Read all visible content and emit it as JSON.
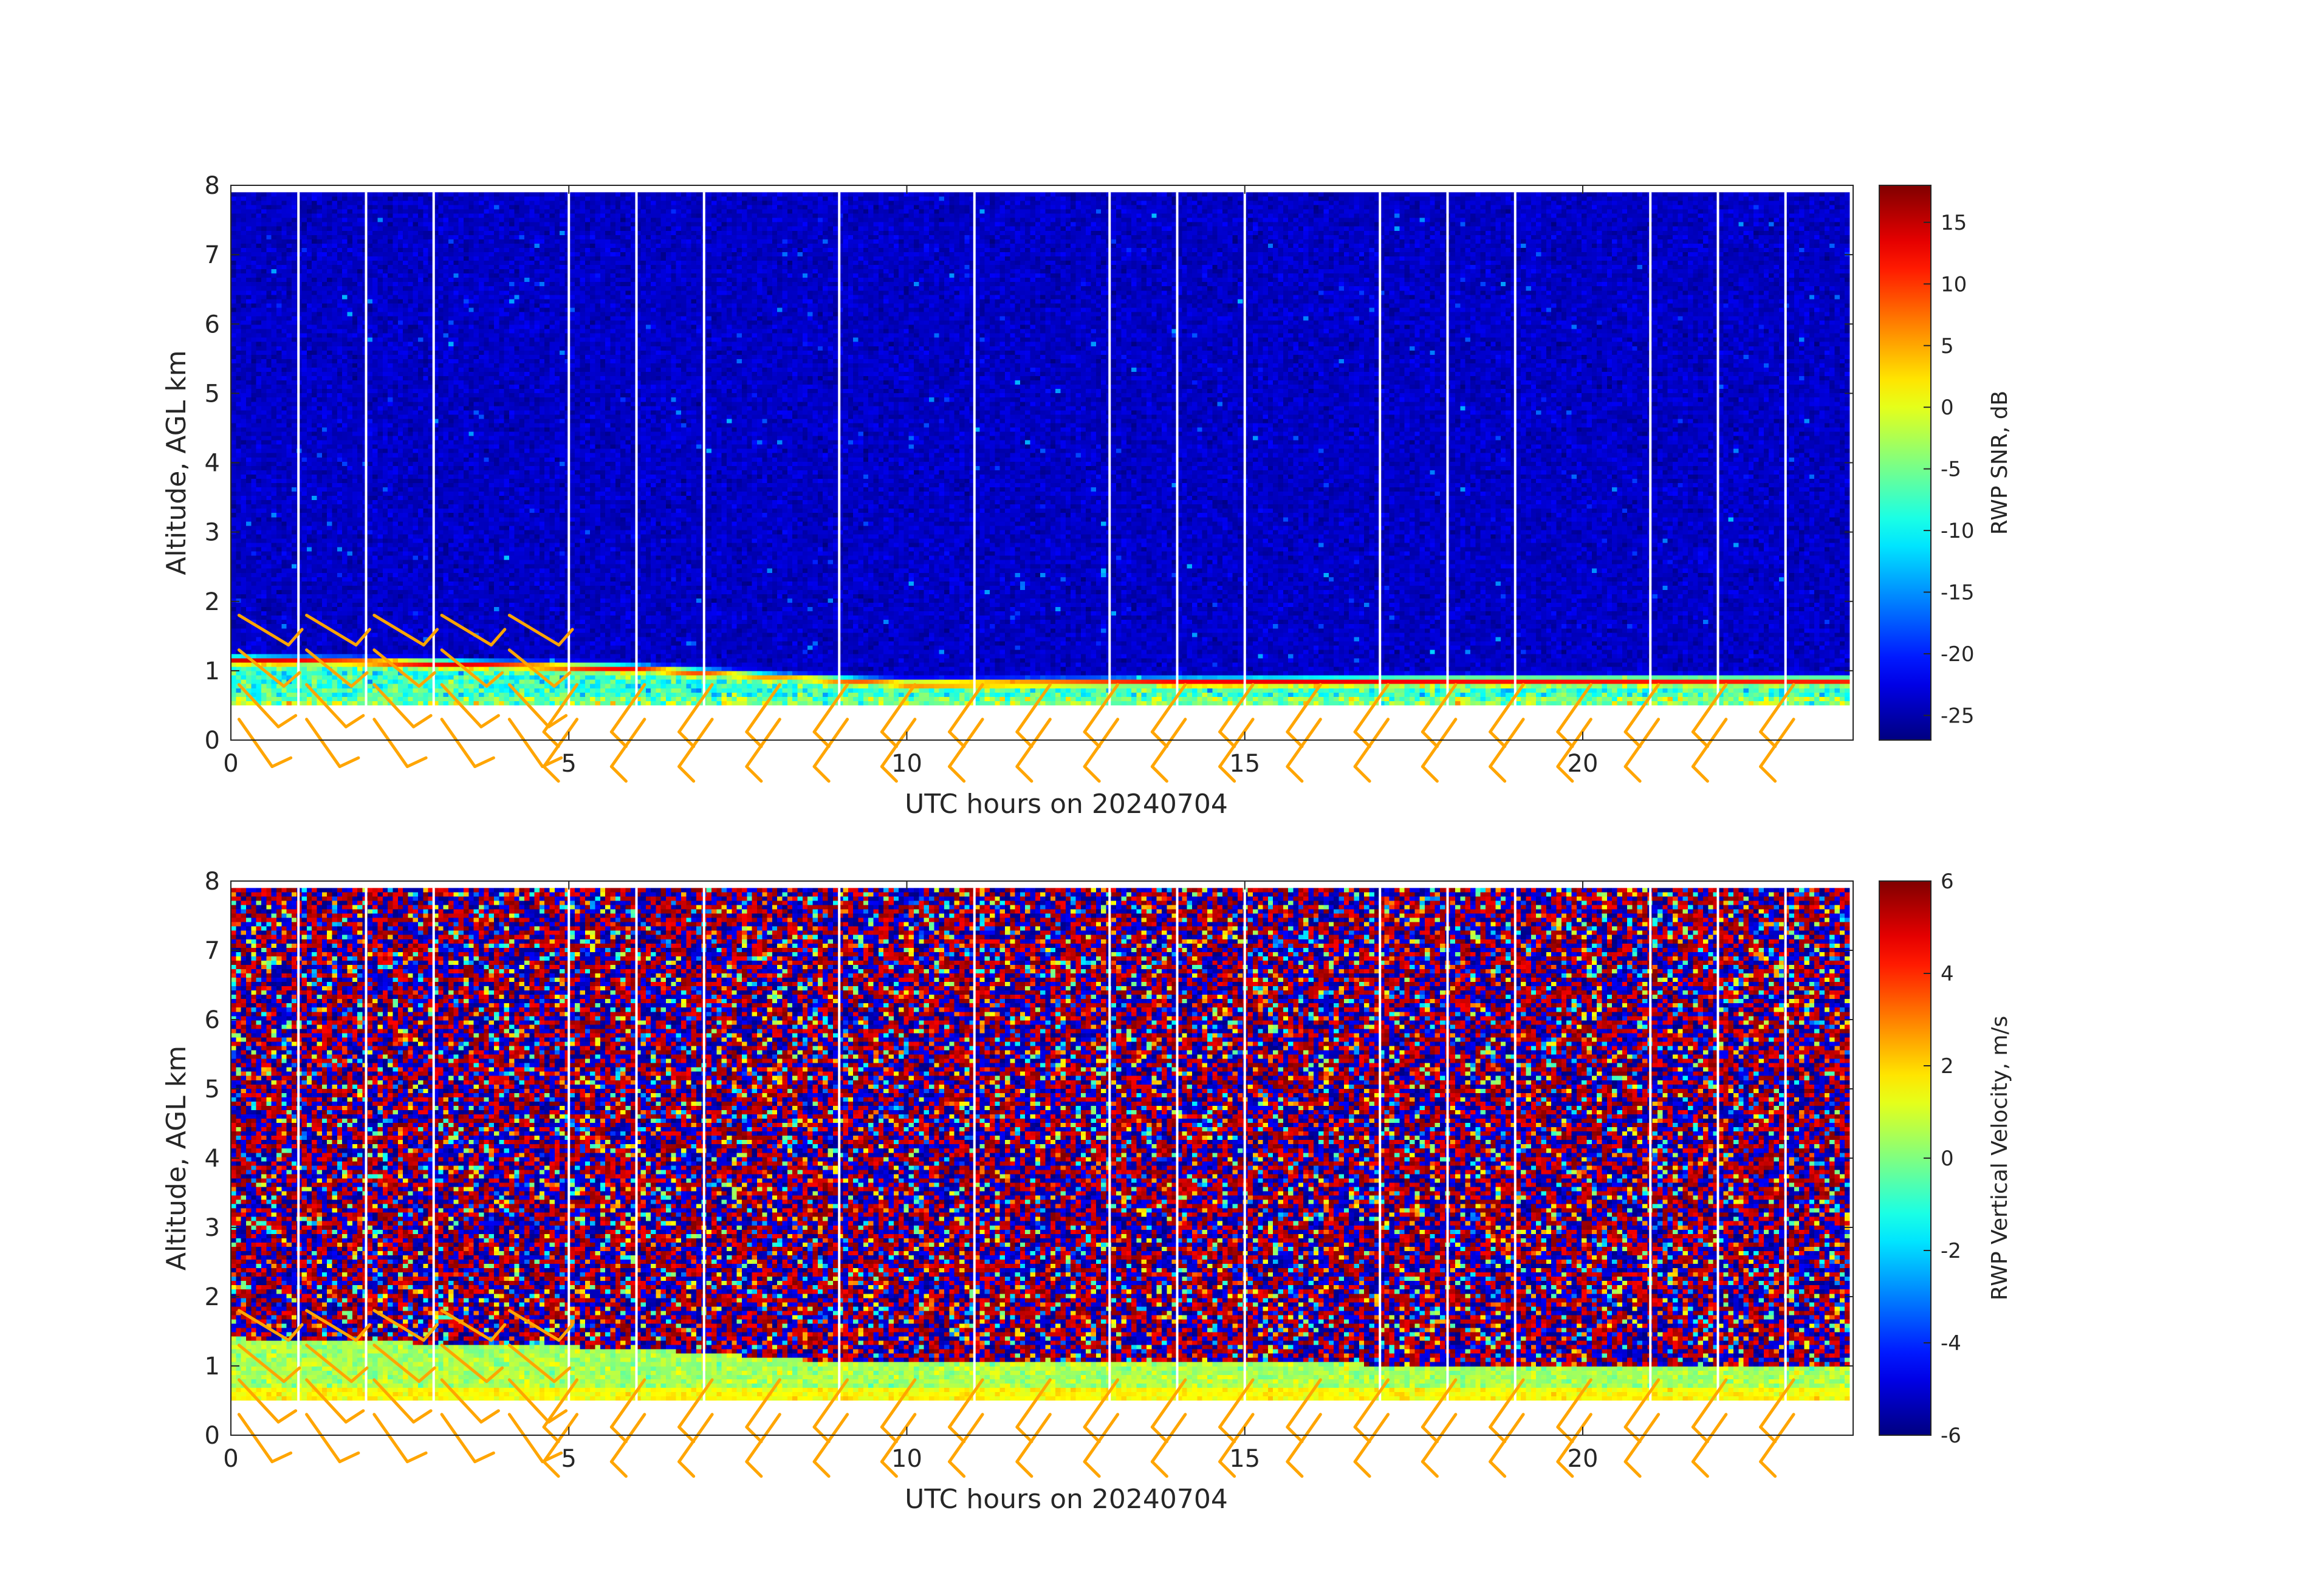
{
  "chart_data": [
    {
      "type": "heatmap",
      "title": "",
      "xlabel": "UTC hours on 20240704",
      "ylabel": "Altitude, AGL km",
      "xlim": [
        0,
        24
      ],
      "ylim": [
        0,
        8
      ],
      "x_ticks": [
        0,
        5,
        10,
        15,
        20
      ],
      "y_ticks": [
        0,
        1,
        2,
        3,
        4,
        5,
        6,
        7,
        8
      ],
      "colormap": "jet",
      "colorbar": {
        "label": "RWP SNR, dB",
        "range": [
          -27,
          18
        ],
        "ticks": [
          15,
          10,
          5,
          0,
          -5,
          -10,
          -15,
          -20,
          -25
        ]
      },
      "data_altitude_range_km": [
        0.5,
        7.9
      ],
      "data_gaps_hours": [
        1,
        2,
        3,
        5,
        6,
        7,
        9,
        11,
        13,
        14,
        15,
        17,
        18,
        19,
        21,
        22,
        23
      ],
      "features": {
        "background_snr_db": -24,
        "strong_layer": [
          {
            "hour": 0,
            "altitude_km": 1.15,
            "snr_db": 14
          },
          {
            "hour": 2,
            "altitude_km": 1.12,
            "snr_db": 14
          },
          {
            "hour": 4,
            "altitude_km": 1.07,
            "snr_db": 13
          },
          {
            "hour": 6,
            "altitude_km": 1.02,
            "snr_db": 12
          },
          {
            "hour": 8,
            "altitude_km": 0.9,
            "snr_db": 5
          },
          {
            "hour": 10,
            "altitude_km": 0.8,
            "snr_db": 10
          },
          {
            "hour": 14,
            "altitude_km": 0.83,
            "snr_db": 13
          },
          {
            "hour": 18,
            "altitude_km": 0.85,
            "snr_db": 13
          },
          {
            "hour": 24,
            "altitude_km": 0.85,
            "snr_db": 12
          }
        ]
      }
    },
    {
      "type": "heatmap",
      "title": "",
      "xlabel": "UTC hours on 20240704",
      "ylabel": "Altitude, AGL km",
      "xlim": [
        0,
        24
      ],
      "ylim": [
        0,
        8
      ],
      "x_ticks": [
        0,
        5,
        10,
        15,
        20
      ],
      "y_ticks": [
        0,
        1,
        2,
        3,
        4,
        5,
        6,
        7,
        8
      ],
      "colormap": "jet",
      "colorbar": {
        "label": "RWP Vertical Velocity, m/s",
        "range": [
          -6,
          6
        ],
        "ticks": [
          6,
          4,
          2,
          0,
          -2,
          -4,
          -6
        ]
      },
      "data_altitude_range_km": [
        0.5,
        7.9
      ],
      "data_gaps_hours": [
        1,
        2,
        3,
        5,
        6,
        7,
        9,
        11,
        13,
        14,
        15,
        17,
        18,
        19,
        21,
        22,
        23
      ],
      "features": {
        "upper_noise_velocity_range_ms": [
          -6,
          6
        ],
        "boundary_layer_top_km": [
          {
            "hour": 0,
            "altitude_km": 1.4
          },
          {
            "hour": 6,
            "altitude_km": 1.25
          },
          {
            "hour": 9,
            "altitude_km": 1.05
          },
          {
            "hour": 24,
            "altitude_km": 1.0
          }
        ],
        "boundary_layer_velocity_ms": 0.5
      }
    }
  ],
  "wind_barbs": {
    "color": "#ffa500",
    "note_times_hours": [
      0,
      1,
      2,
      3,
      4,
      5,
      6,
      7,
      8,
      9,
      10,
      11,
      12,
      13,
      14,
      15,
      16,
      17,
      18,
      19,
      20,
      21,
      22,
      23
    ],
    "altitudes_km": [
      0.5,
      1.0,
      1.5,
      2.0
    ]
  }
}
